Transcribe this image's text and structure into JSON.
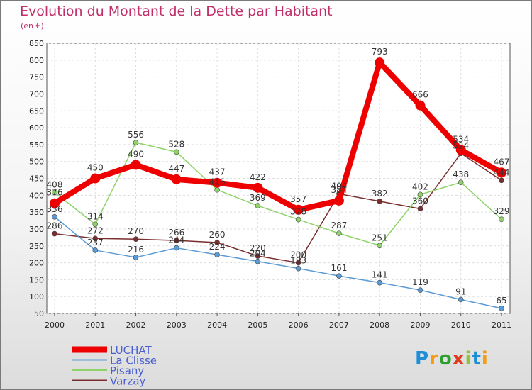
{
  "title": "Evolution du Montant de la Dette par Habitant",
  "subtitle": "(en €)",
  "logo": {
    "text": "Proxiti",
    "colors": [
      "#1e8fd6",
      "#f39c12",
      "#2e9f2e",
      "#e03c1c",
      "#8cc63f",
      "#1e8fd6",
      "#f39c12"
    ]
  },
  "chart_data": {
    "type": "line",
    "x": [
      "2000",
      "2001",
      "2002",
      "2003",
      "2004",
      "2005",
      "2006",
      "2007",
      "2008",
      "2009",
      "2010",
      "2011"
    ],
    "ylim": [
      50,
      850
    ],
    "yticks": [
      50,
      100,
      150,
      200,
      250,
      300,
      350,
      400,
      450,
      500,
      550,
      600,
      650,
      700,
      750,
      800,
      850
    ],
    "grid": true,
    "legend_position": "bottom-left",
    "series": [
      {
        "name": "LUCHAT",
        "color": "#ee0000",
        "values": [
          376,
          450,
          490,
          447,
          437,
          422,
          357,
          384,
          793,
          666,
          534,
          467
        ]
      },
      {
        "name": "La Clisse",
        "color": "#5b9bd5",
        "values": [
          336,
          237,
          216,
          244,
          224,
          204,
          183,
          161,
          141,
          119,
          91,
          65
        ]
      },
      {
        "name": "Pisany",
        "color": "#8ed36a",
        "values": [
          408,
          314,
          556,
          528,
          416,
          369,
          328,
          287,
          251,
          402,
          438,
          329
        ]
      },
      {
        "name": "Varzay",
        "color": "#7a2e2e",
        "values": [
          286,
          272,
          270,
          266,
          260,
          220,
          200,
          404,
          382,
          360,
          524,
          444
        ]
      }
    ]
  }
}
